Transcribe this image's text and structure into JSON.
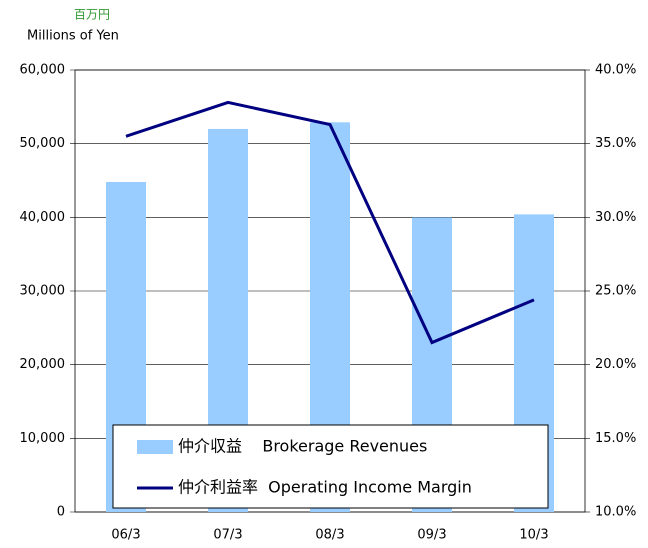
{
  "chart_data": {
    "type": "bar_line",
    "y_unit_label_jp": "百万円",
    "y_unit_label": "Millions of Yen",
    "categories": [
      "06/3",
      "07/3",
      "08/3",
      "09/3",
      "10/3"
    ],
    "series": [
      {
        "name": "仲介収益    Brokerage Revenues",
        "type": "bar",
        "color": "#99ccff",
        "values": [
          44800,
          52000,
          52900,
          40000,
          40400
        ]
      },
      {
        "name": "仲介利益率  Operating Income Margin",
        "type": "line",
        "axis": "y2",
        "color": "#000080",
        "values": [
          35.5,
          37.8,
          36.3,
          21.5,
          24.4
        ]
      }
    ],
    "ylim": [
      0,
      60000
    ],
    "yticks": [
      0,
      {
        "value": 10000,
        "label": "10,000"
      },
      {
        "value": 20000,
        "label": "20,000"
      },
      {
        "value": 30000,
        "label": "30,000"
      },
      {
        "value": 40000,
        "label": "40,000"
      },
      {
        "value": 50000,
        "label": "50,000"
      },
      {
        "value": 60000,
        "label": "60,000"
      }
    ],
    "y2lim": [
      10,
      40
    ],
    "y2ticks": [
      {
        "value": 10,
        "label": "10.0%"
      },
      {
        "value": 15,
        "label": "15.0%"
      },
      {
        "value": 20,
        "label": "20.0%"
      },
      {
        "value": 25,
        "label": "25.0%"
      },
      {
        "value": 30,
        "label": "30.0%"
      },
      {
        "value": 35,
        "label": "35.0%"
      },
      {
        "value": 40,
        "label": "40.0%"
      }
    ],
    "grid": true
  }
}
